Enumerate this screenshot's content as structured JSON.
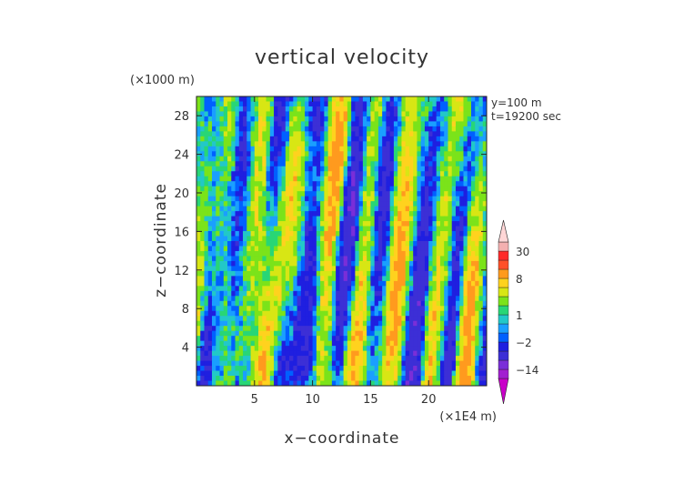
{
  "chart_data": {
    "type": "heatmap",
    "title": "vertical velocity",
    "xlabel": "x−coordinate",
    "ylabel": "z−coordinate",
    "x_unit": "(×1E4 m)",
    "y_unit": "(×1000 m)",
    "xlim": [
      0,
      25
    ],
    "ylim": [
      0,
      30
    ],
    "x_ticks": [
      5,
      10,
      15,
      20
    ],
    "x_tick_labels": [
      "5",
      "10",
      "15",
      "20"
    ],
    "y_ticks": [
      4,
      8,
      12,
      16,
      20,
      24,
      28
    ],
    "y_tick_labels": [
      "4",
      "8",
      "12",
      "16",
      "20",
      "24",
      "28"
    ],
    "annotations": [
      "y=100 m",
      "t=19200 sec"
    ],
    "colorbar": {
      "levels": [
        -20,
        -14,
        -8,
        -4,
        -2,
        -1,
        0,
        1,
        2,
        4,
        6,
        8,
        14,
        20,
        30,
        40
      ],
      "tick_values": [
        30,
        8,
        1,
        -2,
        -14
      ],
      "tick_labels": [
        "30",
        "8",
        "1",
        "−2",
        "−14"
      ],
      "colors": [
        "#c900c9",
        "#a21fd0",
        "#7a2ed8",
        "#3c2fd6",
        "#1f1fe0",
        "#0060ff",
        "#1a9fff",
        "#22c8c8",
        "#28d676",
        "#7be31a",
        "#d8e614",
        "#ffd21e",
        "#ff9a1e",
        "#ff5028",
        "#ff2a2a",
        "#f4b0b0",
        "#ffd6d6"
      ],
      "extend": "both"
    },
    "field_description_values": {
      "min": -20,
      "max": 30,
      "dominant_range": [
        -4,
        8
      ]
    }
  }
}
